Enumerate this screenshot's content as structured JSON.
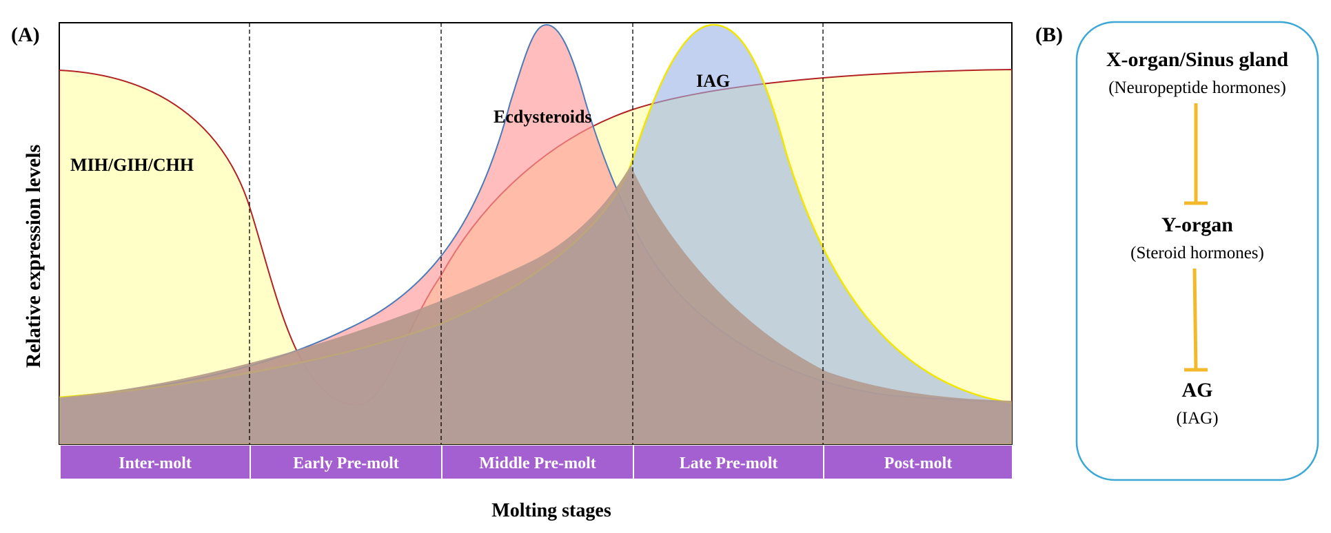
{
  "panel_a": {
    "label": "(A)",
    "ylabel": "Relative expression levels",
    "xlabel": "Molting stages",
    "stages": [
      "Inter-molt",
      "Early Pre-molt",
      "Middle Pre-molt",
      "Late Pre-molt",
      "Post-molt"
    ],
    "curve_labels": {
      "mih": "MIH/GIH/CHH",
      "ecdysteroids": "Ecdysteroids",
      "iag": "IAG"
    }
  },
  "panel_b": {
    "label": "(B)",
    "nodes": [
      {
        "title": "X-organ/Sinus gland",
        "subtitle": "(Neuropeptide hormones)"
      },
      {
        "title": "Y-organ",
        "subtitle": "(Steroid hormones)"
      },
      {
        "title": "AG",
        "subtitle": "(IAG)"
      }
    ]
  },
  "colors": {
    "mih_fill": "#ffff99",
    "mih_line": "#b22222",
    "ecdysteroids_fill": "#ff9999",
    "ecdysteroids_line": "#4a7ab8",
    "iag_fill": "#99b3e6",
    "iag_line": "#f2e600",
    "base_fill": "#b49a8e",
    "stage_bar": "#a45fd0",
    "box_border": "#3aa7d6",
    "inhibit_arrow": "#f2b92b"
  }
}
